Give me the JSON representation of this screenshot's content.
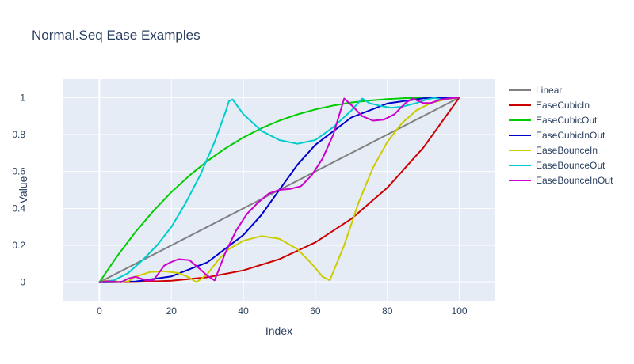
{
  "chart_data": {
    "type": "line",
    "title": "Normal.Seq Ease Examples",
    "xlabel": "Index",
    "ylabel": "Value",
    "xlim": [
      -10,
      110
    ],
    "ylim": [
      -0.1,
      1.1
    ],
    "x_ticks": [
      0,
      20,
      40,
      60,
      80,
      100
    ],
    "y_ticks": [
      0,
      0.2,
      0.4,
      0.6,
      0.8,
      1
    ],
    "x_tick_labels": [
      "0",
      "20",
      "40",
      "60",
      "80",
      "100"
    ],
    "y_tick_labels": [
      "0",
      "0.2",
      "0.4",
      "0.6",
      "0.8",
      "1"
    ],
    "grid": true,
    "legend_position": "right",
    "plot_background": "#e5ecf6",
    "series": [
      {
        "name": "Linear",
        "color": "#808080",
        "points": [
          [
            0,
            0
          ],
          [
            100,
            1
          ]
        ]
      },
      {
        "name": "EaseCubicIn",
        "color": "#cc0000",
        "points": [
          [
            0,
            0
          ],
          [
            10,
            0.001
          ],
          [
            20,
            0.008
          ],
          [
            30,
            0.027
          ],
          [
            40,
            0.064
          ],
          [
            50,
            0.125
          ],
          [
            60,
            0.216
          ],
          [
            70,
            0.343
          ],
          [
            80,
            0.512
          ],
          [
            90,
            0.729
          ],
          [
            100,
            1
          ]
        ]
      },
      {
        "name": "EaseCubicOut",
        "color": "#00cc00",
        "points": [
          [
            0,
            0
          ],
          [
            5,
            0.143
          ],
          [
            10,
            0.271
          ],
          [
            15,
            0.386
          ],
          [
            20,
            0.488
          ],
          [
            25,
            0.578
          ],
          [
            30,
            0.657
          ],
          [
            35,
            0.725
          ],
          [
            40,
            0.784
          ],
          [
            45,
            0.834
          ],
          [
            50,
            0.875
          ],
          [
            55,
            0.909
          ],
          [
            60,
            0.936
          ],
          [
            65,
            0.957
          ],
          [
            70,
            0.973
          ],
          [
            75,
            0.984
          ],
          [
            80,
            0.992
          ],
          [
            85,
            0.997
          ],
          [
            90,
            0.999
          ],
          [
            100,
            1
          ]
        ]
      },
      {
        "name": "EaseCubicInOut",
        "color": "#0000cc",
        "points": [
          [
            0,
            0
          ],
          [
            10,
            0.004
          ],
          [
            20,
            0.032
          ],
          [
            30,
            0.108
          ],
          [
            40,
            0.256
          ],
          [
            45,
            0.364
          ],
          [
            50,
            0.5
          ],
          [
            55,
            0.636
          ],
          [
            60,
            0.744
          ],
          [
            70,
            0.892
          ],
          [
            80,
            0.968
          ],
          [
            90,
            0.996
          ],
          [
            100,
            1
          ]
        ]
      },
      {
        "name": "EaseBounceIn",
        "color": "#cccc00",
        "points": [
          [
            0,
            0
          ],
          [
            2,
            0.008
          ],
          [
            4,
            0.008
          ],
          [
            6,
            0
          ],
          [
            8,
            0.005
          ],
          [
            10,
            0.03
          ],
          [
            14,
            0.055
          ],
          [
            18,
            0.06
          ],
          [
            22,
            0.05
          ],
          [
            25,
            0.025
          ],
          [
            27,
            0
          ],
          [
            30,
            0.045
          ],
          [
            33,
            0.12
          ],
          [
            36,
            0.18
          ],
          [
            40,
            0.225
          ],
          [
            45,
            0.25
          ],
          [
            50,
            0.235
          ],
          [
            55,
            0.18
          ],
          [
            59,
            0.1
          ],
          [
            62,
            0.03
          ],
          [
            64,
            0.01
          ],
          [
            68,
            0.2
          ],
          [
            72,
            0.43
          ],
          [
            76,
            0.62
          ],
          [
            80,
            0.76
          ],
          [
            84,
            0.86
          ],
          [
            88,
            0.93
          ],
          [
            92,
            0.97
          ],
          [
            96,
            0.99
          ],
          [
            100,
            1
          ]
        ]
      },
      {
        "name": "EaseBounceOut",
        "color": "#00cccc",
        "points": [
          [
            0,
            0
          ],
          [
            4,
            0.01
          ],
          [
            8,
            0.05
          ],
          [
            12,
            0.12
          ],
          [
            16,
            0.2
          ],
          [
            20,
            0.3
          ],
          [
            24,
            0.43
          ],
          [
            28,
            0.58
          ],
          [
            32,
            0.76
          ],
          [
            35,
            0.92
          ],
          [
            36,
            0.98
          ],
          [
            37,
            0.99
          ],
          [
            40,
            0.91
          ],
          [
            45,
            0.82
          ],
          [
            50,
            0.77
          ],
          [
            55,
            0.75
          ],
          [
            60,
            0.77
          ],
          [
            65,
            0.84
          ],
          [
            70,
            0.93
          ],
          [
            73,
            0.995
          ],
          [
            75,
            0.97
          ],
          [
            78,
            0.955
          ],
          [
            81,
            0.945
          ],
          [
            84,
            0.95
          ],
          [
            88,
            0.97
          ],
          [
            91,
            0.99
          ],
          [
            93,
            0.998
          ],
          [
            95,
            0.99
          ],
          [
            97,
            0.995
          ],
          [
            100,
            1
          ]
        ]
      },
      {
        "name": "EaseBounceInOut",
        "color": "#cc00cc",
        "points": [
          [
            0,
            0
          ],
          [
            2,
            0.005
          ],
          [
            4,
            0.004
          ],
          [
            6,
            0
          ],
          [
            8,
            0.02
          ],
          [
            10,
            0.03
          ],
          [
            13,
            0.01
          ],
          [
            15,
            0.01
          ],
          [
            18,
            0.09
          ],
          [
            20,
            0.11
          ],
          [
            22,
            0.125
          ],
          [
            25,
            0.12
          ],
          [
            28,
            0.07
          ],
          [
            30,
            0.035
          ],
          [
            32,
            0.01
          ],
          [
            35,
            0.16
          ],
          [
            38,
            0.28
          ],
          [
            41,
            0.37
          ],
          [
            44,
            0.43
          ],
          [
            47,
            0.48
          ],
          [
            50,
            0.5
          ],
          [
            53,
            0.505
          ],
          [
            56,
            0.52
          ],
          [
            59,
            0.58
          ],
          [
            62,
            0.67
          ],
          [
            65,
            0.8
          ],
          [
            68,
            0.995
          ],
          [
            70,
            0.96
          ],
          [
            73,
            0.9
          ],
          [
            76,
            0.875
          ],
          [
            79,
            0.88
          ],
          [
            82,
            0.91
          ],
          [
            85,
            0.97
          ],
          [
            87,
            0.995
          ],
          [
            90,
            0.97
          ],
          [
            92,
            0.97
          ],
          [
            95,
            0.99
          ],
          [
            97,
            0.995
          ],
          [
            100,
            1
          ]
        ]
      }
    ]
  }
}
